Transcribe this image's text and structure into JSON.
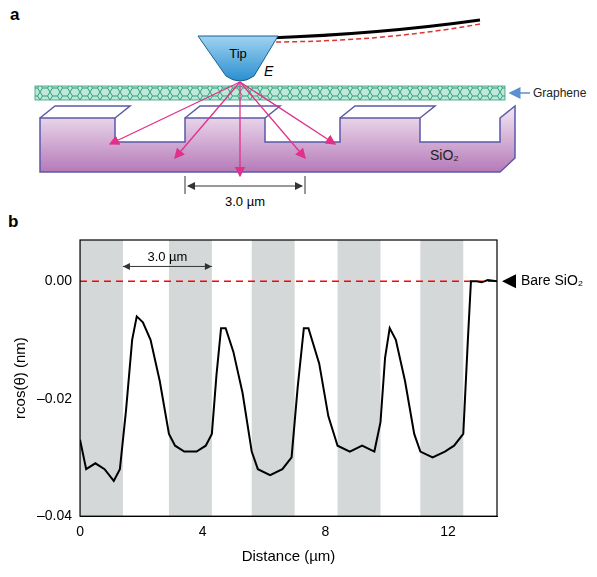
{
  "diagram": {
    "panel_label": "a",
    "tip": "Tip",
    "field": "E",
    "graphene": "Graphene",
    "substrate": "SiO₂",
    "period": "3.0 µm"
  },
  "chart_data": {
    "type": "line",
    "panel_label": "b",
    "x_label": "Distance (µm)",
    "y_label": "rcos(θ) (nm)",
    "xlim": [
      0,
      13.6
    ],
    "ylim": [
      -0.04,
      0.007
    ],
    "xticks": [
      0,
      4,
      8,
      12
    ],
    "yticks": [
      {
        "value": -0.04,
        "label": "–0.04"
      },
      {
        "value": -0.02,
        "label": "–0.02"
      },
      {
        "value": 0,
        "label": "0.00"
      }
    ],
    "grid": false,
    "color": "#000000",
    "x": [
      0,
      0.2,
      0.5,
      0.8,
      1.1,
      1.3,
      1.5,
      1.7,
      1.85,
      2.05,
      2.3,
      2.6,
      2.9,
      3.1,
      3.4,
      3.8,
      4.1,
      4.3,
      4.45,
      4.6,
      4.75,
      5.0,
      5.3,
      5.6,
      5.8,
      6.2,
      6.6,
      6.9,
      7.1,
      7.3,
      7.45,
      7.8,
      8.1,
      8.4,
      8.8,
      9.2,
      9.6,
      9.8,
      9.95,
      10.1,
      10.3,
      10.6,
      10.9,
      11.1,
      11.5,
      11.9,
      12.2,
      12.5,
      12.65,
      12.75,
      12.9,
      13.1,
      13.3,
      13.6
    ],
    "values": [
      -0.027,
      -0.032,
      -0.031,
      -0.032,
      -0.034,
      -0.032,
      -0.022,
      -0.01,
      -0.006,
      -0.007,
      -0.01,
      -0.017,
      -0.026,
      -0.028,
      -0.029,
      -0.029,
      -0.028,
      -0.026,
      -0.016,
      -0.008,
      -0.008,
      -0.012,
      -0.019,
      -0.029,
      -0.032,
      -0.033,
      -0.032,
      -0.03,
      -0.018,
      -0.008,
      -0.008,
      -0.014,
      -0.023,
      -0.028,
      -0.029,
      -0.028,
      -0.029,
      -0.024,
      -0.013,
      -0.008,
      -0.01,
      -0.017,
      -0.026,
      -0.029,
      -0.03,
      -0.029,
      -0.028,
      -0.026,
      -0.01,
      0.0,
      0.0,
      -0.0002,
      0.0002,
      0.0
    ],
    "shaded_regions": [
      [
        0,
        1.4
      ],
      [
        2.9,
        4.3
      ],
      [
        5.6,
        7.0
      ],
      [
        8.4,
        9.8
      ],
      [
        11.1,
        12.5
      ]
    ],
    "reference_line": {
      "value": 0,
      "label": "Bare SiO₂",
      "color": "#ff0000",
      "line_style": "dashed"
    },
    "period_marker": {
      "label": "3.0 µm",
      "from": 1.4,
      "to": 4.3,
      "y": 0.0025
    }
  }
}
